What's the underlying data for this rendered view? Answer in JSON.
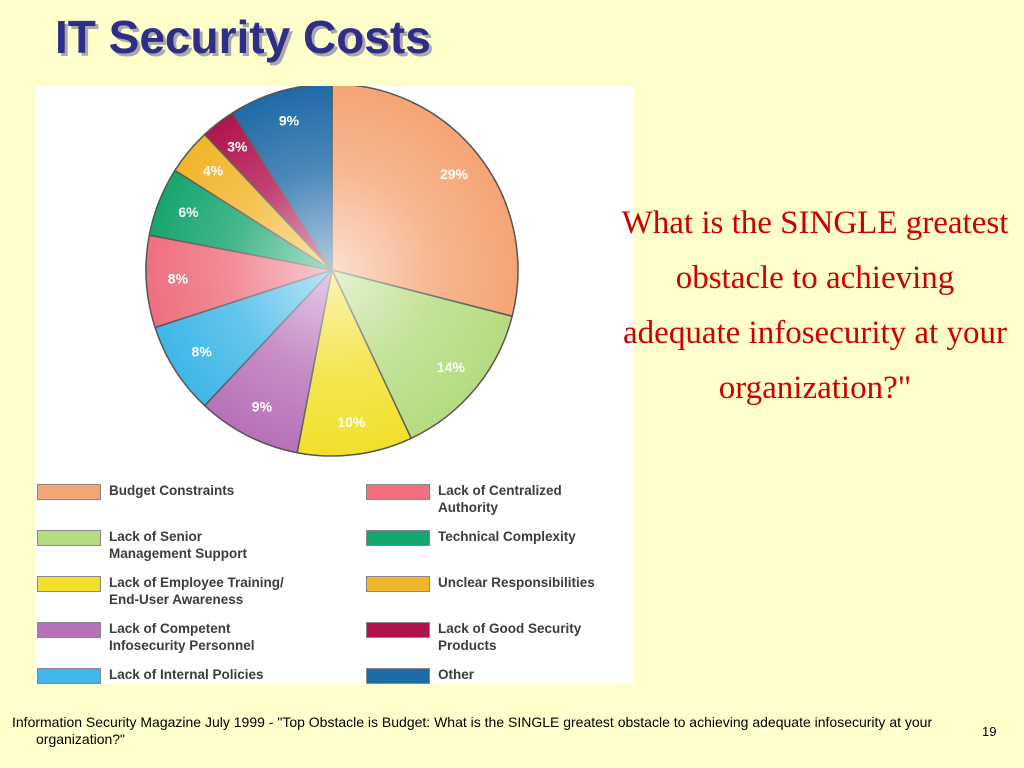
{
  "slide": {
    "title": "IT Security Costs",
    "question": "What is the SINGLE greatest obstacle to achieving adequate infosecurity at your organization?\"",
    "footnote": "Information Security Magazine July 1999 - \"Top Obstacle is Budget: What is the SINGLE greatest obstacle to achieving adequate infosecurity at your organization?\"",
    "page_number": "19"
  },
  "chart_data": {
    "type": "pie",
    "title": "",
    "categories": [
      "Budget Constraints",
      "Lack of Senior Management Support",
      "Lack of Employee Training/ End-User Awareness",
      "Lack of Competent Infosecurity Personnel",
      "Lack of Internal Policies",
      "Lack of Centralized Authority",
      "Technical Complexity",
      "Unclear Responsibilities",
      "Lack of Good Security Products",
      "Other"
    ],
    "values": [
      29,
      14,
      10,
      9,
      8,
      8,
      6,
      4,
      3,
      9
    ],
    "value_labels": [
      "29%",
      "14%",
      "10%",
      "9%",
      "8%",
      "8%",
      "6%",
      "4%",
      "3%",
      "9%"
    ],
    "colors": [
      "#f5a575",
      "#b5dc80",
      "#f2e02a",
      "#b871b8",
      "#3fb7e8",
      "#ef6f7e",
      "#17a56e",
      "#f2b52a",
      "#b0144f",
      "#1f6aa8"
    ],
    "legend": {
      "placement": "bottom",
      "left_column": [
        {
          "lines": [
            "Budget Constraints"
          ],
          "color": "#f5a575"
        },
        {
          "lines": [
            "Lack of Senior",
            "Management Support"
          ],
          "color": "#b5dc80"
        },
        {
          "lines": [
            "Lack of Employee Training/",
            "End-User Awareness"
          ],
          "color": "#f2e02a"
        },
        {
          "lines": [
            "Lack of Competent",
            "Infosecurity Personnel"
          ],
          "color": "#b871b8"
        },
        {
          "lines": [
            "Lack of Internal Policies"
          ],
          "color": "#3fb7e8"
        }
      ],
      "right_column": [
        {
          "lines": [
            "Lack of Centralized",
            "Authority"
          ],
          "color": "#ef6f7e"
        },
        {
          "lines": [
            "Technical Complexity"
          ],
          "color": "#17a56e"
        },
        {
          "lines": [
            "Unclear Responsibilities"
          ],
          "color": "#f2b52a"
        },
        {
          "lines": [
            "Lack of Good Security",
            "Products"
          ],
          "color": "#b0144f"
        },
        {
          "lines": [
            "Other"
          ],
          "color": "#1f6aa8"
        }
      ]
    }
  }
}
